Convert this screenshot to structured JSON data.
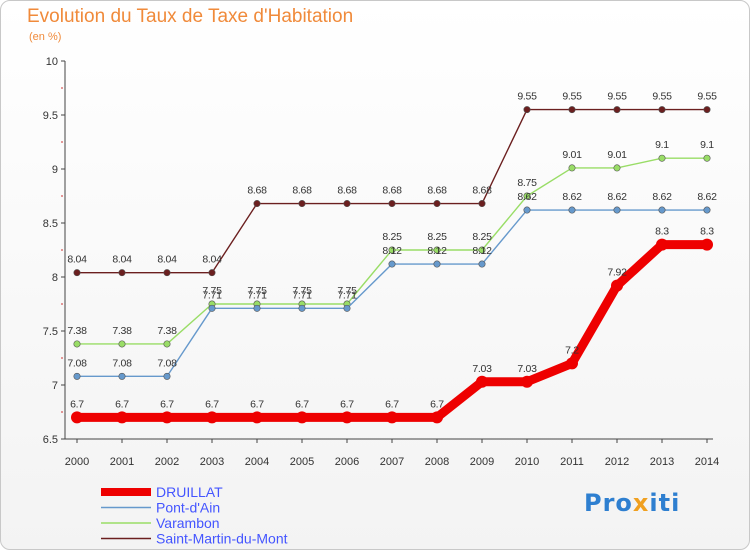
{
  "title": "Evolution du Taux de Taxe d'Habitation",
  "subtitle": "(en %)",
  "logo": {
    "part1": "Pro",
    "part2": "x",
    "part3": "iti"
  },
  "chart_data": {
    "type": "line",
    "title": "Evolution du Taux de Taxe d'Habitation",
    "ylabel": "(en %)",
    "xlabel": "",
    "ylim": [
      6.5,
      10
    ],
    "yticks": [
      "6.5",
      "7",
      "7.5",
      "8",
      "8.5",
      "9",
      "9.5",
      "10"
    ],
    "categories": [
      "2000",
      "2001",
      "2002",
      "2003",
      "2004",
      "2005",
      "2006",
      "2007",
      "2008",
      "2009",
      "2010",
      "2011",
      "2012",
      "2013",
      "2014"
    ],
    "grid": false,
    "legend_position": "bottom-left",
    "series": [
      {
        "name": "Saint-Martin-du-Mont",
        "color": "#6b1f1f",
        "values": [
          8.04,
          8.04,
          8.04,
          8.04,
          8.68,
          8.68,
          8.68,
          8.68,
          8.68,
          8.68,
          9.55,
          9.55,
          9.55,
          9.55,
          9.55
        ],
        "labels": [
          "8.04",
          "8.04",
          "8.04",
          "8.04",
          "8.68",
          "8.68",
          "8.68",
          "8.68",
          "8.68",
          "8.68",
          "9.55",
          "9.55",
          "9.55",
          "9.55",
          "9.55"
        ]
      },
      {
        "name": "Varambon",
        "color": "#99dd66",
        "values": [
          7.38,
          7.38,
          7.38,
          7.75,
          7.75,
          7.75,
          7.75,
          8.25,
          8.25,
          8.25,
          8.75,
          9.01,
          9.01,
          9.1,
          9.1
        ],
        "labels": [
          "7.38",
          "7.38",
          "7.38",
          "7.75",
          "7.75",
          "7.75",
          "7.75",
          "8.25",
          "8.25",
          "8.25",
          "8.75",
          "9.01",
          "9.01",
          "9.1",
          "9.1"
        ]
      },
      {
        "name": "Pont-d'Ain",
        "color": "#6699cc",
        "values": [
          7.08,
          7.08,
          7.08,
          7.71,
          7.71,
          7.71,
          7.71,
          8.12,
          8.12,
          8.12,
          8.62,
          8.62,
          8.62,
          8.62,
          8.62
        ],
        "labels": [
          "7.08",
          "7.08",
          "7.08",
          "7.71",
          "7.71",
          "7.71",
          "7.71",
          "8.12",
          "8.12",
          "8.12",
          "8.62",
          "8.62",
          "8.62",
          "8.62",
          "8.62"
        ]
      },
      {
        "name": "DRUILLAT",
        "color": "#ee0000",
        "values": [
          6.7,
          6.7,
          6.7,
          6.7,
          6.7,
          6.7,
          6.7,
          6.7,
          6.7,
          7.03,
          7.03,
          7.2,
          7.92,
          8.3,
          8.3
        ],
        "labels": [
          "6.7",
          "6.7",
          "6.7",
          "6.7",
          "6.7",
          "6.7",
          "6.7",
          "6.7",
          "6.7",
          "7.03",
          "7.03",
          "7.2",
          "7.92",
          "8.3",
          "8.3"
        ]
      }
    ],
    "legend": [
      "DRUILLAT",
      "Pont-d'Ain",
      "Varambon",
      "Saint-Martin-du-Mont"
    ],
    "legend_text_color": "#4455ff"
  }
}
